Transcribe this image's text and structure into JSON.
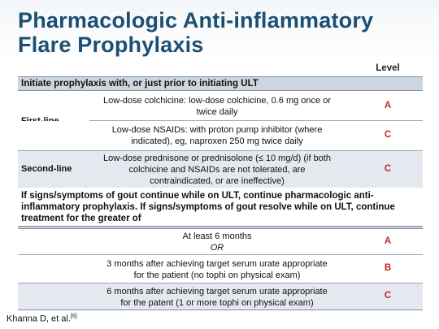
{
  "title": {
    "line1": "Pharmacologic Anti-inflammatory",
    "line2": "Flare Prophylaxis"
  },
  "table": {
    "level_header": "Level",
    "section1": "Initiate prophylaxis with, or just prior to initiating ULT",
    "first_line_label": "First-line",
    "second_line_label": "Second-line",
    "rows": [
      {
        "text1": "Low-dose colchicine: low-dose colchicine, 0.6 mg once or",
        "text2": "twice daily",
        "level": "A"
      },
      {
        "text1": "Low-dose NSAIDs: with proton pump inhibitor (where",
        "text2": "indicated), eg, naproxen 250 mg twice daily",
        "level": "C"
      },
      {
        "text1": "Low-dose prednisone or prednisolone (≤ 10 mg/d) (if both",
        "text2": "colchicine and NSAIDs are not tolerated, are",
        "text3": "contraindicated, or are ineffective)",
        "level": "C"
      }
    ],
    "paragraph_lines": [
      "If signs/symptoms of gout continue while on ULT, continue pharmacologic anti-",
      "inflammatory prophylaxis. If signs/symptoms of gout resolve while on ULT, continue",
      "treatment for the greater of"
    ],
    "duration_rows": [
      {
        "text1": "At least 6 months",
        "text2": "OR",
        "level": "A"
      },
      {
        "text1": "3 months after achieving target serum urate appropriate",
        "text2": "for the patient (no tophi on physical exam)",
        "level": "B"
      },
      {
        "text1": "6 months after achieving target serum urate appropriate",
        "text2": "for the patent (1 or more tophi on physical exam)",
        "level": "C"
      }
    ]
  },
  "footer": {
    "citation": "Khanna D, et al.",
    "ref": "[6]"
  }
}
